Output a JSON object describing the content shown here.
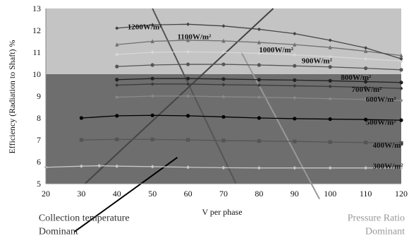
{
  "chart_data": {
    "type": "line",
    "title": "",
    "xlabel": "V per phase",
    "ylabel": "Efficiency (Radiation to Shaft) %",
    "xlim": [
      20,
      120
    ],
    "ylim": [
      5,
      13
    ],
    "x_ticks": [
      "20",
      "30",
      "40",
      "50",
      "60",
      "70",
      "80",
      "90",
      "100",
      "110",
      "120"
    ],
    "y_ticks": [
      "5",
      "6",
      "7",
      "8",
      "9",
      "10",
      "11",
      "12",
      "13"
    ],
    "grid": false,
    "background_bands": [
      {
        "from": 10,
        "to": 13,
        "color": "#c4c4c4"
      },
      {
        "from": 5,
        "to": 10,
        "color": "#6e6e6e"
      }
    ],
    "series": [
      {
        "name": "300W/m²",
        "color": "#c8c8c8",
        "marker": "diamond",
        "x": [
          20,
          30,
          35,
          40,
          50,
          60,
          70,
          80,
          90,
          100,
          110,
          120
        ],
        "y": [
          5.75,
          5.8,
          5.82,
          5.8,
          5.78,
          5.75,
          5.73,
          5.72,
          5.72,
          5.72,
          5.72,
          5.72
        ]
      },
      {
        "name": "400W/m²",
        "color": "#555555",
        "marker": "square",
        "x": [
          30,
          40,
          50,
          60,
          70,
          80,
          90,
          100,
          110,
          120
        ],
        "y": [
          7.0,
          7.02,
          7.02,
          7.0,
          6.97,
          6.95,
          6.93,
          6.9,
          6.88,
          6.86
        ]
      },
      {
        "name": "500W/m²",
        "color": "#000000",
        "marker": "circle",
        "x": [
          30,
          40,
          50,
          60,
          70,
          80,
          90,
          100,
          110,
          120
        ],
        "y": [
          8.0,
          8.1,
          8.12,
          8.1,
          8.05,
          8.0,
          7.97,
          7.95,
          7.93,
          7.9
        ]
      },
      {
        "name": "600W/m²",
        "color": "#8a8a8a",
        "marker": "diamond",
        "x": [
          40,
          50,
          60,
          70,
          80,
          90,
          100,
          110,
          120
        ],
        "y": [
          8.95,
          9.0,
          9.0,
          8.97,
          8.95,
          8.92,
          8.88,
          8.85,
          8.8
        ]
      },
      {
        "name": "700W/m²",
        "color": "#3a3a3a",
        "marker": "diamond",
        "x": [
          40,
          50,
          60,
          70,
          80,
          90,
          100,
          110,
          120
        ],
        "y": [
          9.5,
          9.55,
          9.55,
          9.52,
          9.5,
          9.47,
          9.44,
          9.4,
          9.35
        ]
      },
      {
        "name": "800W/m²",
        "color": "#222222",
        "marker": "circle",
        "x": [
          40,
          50,
          60,
          70,
          80,
          90,
          100,
          110,
          120
        ],
        "y": [
          9.75,
          9.8,
          9.8,
          9.78,
          9.75,
          9.73,
          9.7,
          9.66,
          9.62
        ]
      },
      {
        "name": "900W/m²",
        "color": "#555555",
        "marker": "circle",
        "x": [
          40,
          50,
          60,
          70,
          80,
          90,
          100,
          110,
          120
        ],
        "y": [
          10.35,
          10.42,
          10.45,
          10.45,
          10.42,
          10.38,
          10.33,
          10.27,
          10.2
        ]
      },
      {
        "name": "1000W/m²",
        "color": "#d8d8d8",
        "marker": "diamond",
        "x": [
          40,
          50,
          60,
          70,
          80,
          90,
          100,
          110,
          120
        ],
        "y": [
          10.9,
          11.0,
          11.02,
          11.0,
          10.95,
          10.88,
          10.8,
          10.7,
          10.6
        ]
      },
      {
        "name": "1100W/m²",
        "color": "#707070",
        "marker": "triangle",
        "x": [
          40,
          50,
          60,
          70,
          80,
          90,
          100,
          110,
          120
        ],
        "y": [
          11.35,
          11.5,
          11.55,
          11.52,
          11.45,
          11.35,
          11.22,
          11.05,
          10.85
        ]
      },
      {
        "name": "1200W/m²",
        "color": "#444444",
        "marker": "diamond",
        "x": [
          40,
          50,
          60,
          70,
          80,
          90,
          100,
          110,
          120
        ],
        "y": [
          12.1,
          12.25,
          12.28,
          12.2,
          12.05,
          11.85,
          11.55,
          11.2,
          10.7
        ]
      }
    ],
    "series_labels": [
      {
        "text": "300W/m²",
        "x": 112,
        "y": 5.7
      },
      {
        "text": "400W/m²",
        "x": 112,
        "y": 6.65
      },
      {
        "text": "500W/m²",
        "x": 110,
        "y": 7.7
      },
      {
        "text": "600W/m²",
        "x": 110,
        "y": 8.75
      },
      {
        "text": "700W/m²",
        "x": 106,
        "y": 9.2
      },
      {
        "text": "800W/m²",
        "x": 103,
        "y": 9.75
      },
      {
        "text": "900W/m²",
        "x": 92,
        "y": 10.5
      },
      {
        "text": "1000W/m²",
        "x": 80,
        "y": 11.0
      },
      {
        "text": "1100W/m²",
        "x": 57,
        "y": 11.6
      },
      {
        "text": "1200W/m²",
        "x": 43,
        "y": 12.05
      }
    ],
    "trend_lines": [
      {
        "color": "#555555",
        "x": [
          50,
          73.5
        ],
        "y": [
          13,
          5
        ]
      },
      {
        "color": "#444444",
        "x": [
          31,
          84
        ],
        "y": [
          5,
          13
        ]
      },
      {
        "color": "#999999",
        "x": [
          75,
          97
        ],
        "y": [
          11,
          4.3
        ]
      },
      {
        "color": "#000000",
        "x": [
          28,
          57
        ],
        "y": [
          2.8,
          6.2
        ]
      }
    ],
    "annotations": [
      {
        "lines": [
          "Collection temperature",
          "Dominant"
        ],
        "color": "#333333",
        "x": 18,
        "y": 3.3,
        "anchor": "start"
      },
      {
        "lines": [
          "Pressure Ratio",
          "Dominant"
        ],
        "color": "#999999",
        "x": 121,
        "y": 3.3,
        "anchor": "end"
      }
    ]
  }
}
